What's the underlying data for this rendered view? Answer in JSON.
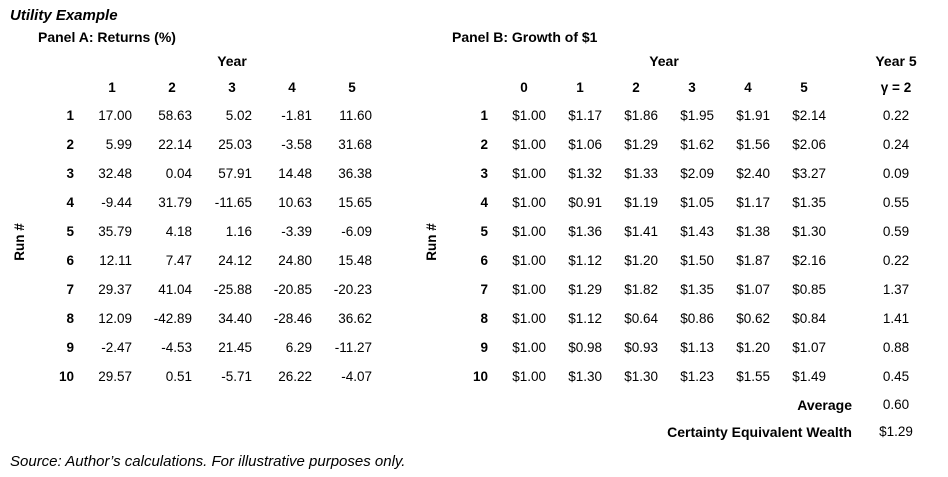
{
  "title": "Utility Example",
  "source": "Source: Author’s calculations. For illustrative purposes only.",
  "chart_data": [
    {
      "type": "table",
      "title": "Panel A: Returns (%)",
      "col_group_label": "Year",
      "row_group_label": "Run #",
      "columns": [
        "1",
        "2",
        "3",
        "4",
        "5"
      ],
      "rows": [
        {
          "run": "1",
          "values": [
            "17.00",
            "58.63",
            "5.02",
            "-1.81",
            "11.60"
          ]
        },
        {
          "run": "2",
          "values": [
            "5.99",
            "22.14",
            "25.03",
            "-3.58",
            "31.68"
          ]
        },
        {
          "run": "3",
          "values": [
            "32.48",
            "0.04",
            "57.91",
            "14.48",
            "36.38"
          ]
        },
        {
          "run": "4",
          "values": [
            "-9.44",
            "31.79",
            "-11.65",
            "10.63",
            "15.65"
          ]
        },
        {
          "run": "5",
          "values": [
            "35.79",
            "4.18",
            "1.16",
            "-3.39",
            "-6.09"
          ]
        },
        {
          "run": "6",
          "values": [
            "12.11",
            "7.47",
            "24.12",
            "24.80",
            "15.48"
          ]
        },
        {
          "run": "7",
          "values": [
            "29.37",
            "41.04",
            "-25.88",
            "-20.85",
            "-20.23"
          ]
        },
        {
          "run": "8",
          "values": [
            "12.09",
            "-42.89",
            "34.40",
            "-28.46",
            "36.62"
          ]
        },
        {
          "run": "9",
          "values": [
            "-2.47",
            "-4.53",
            "21.45",
            "6.29",
            "-11.27"
          ]
        },
        {
          "run": "10",
          "values": [
            "29.57",
            "0.51",
            "-5.71",
            "26.22",
            "-4.07"
          ]
        }
      ]
    },
    {
      "type": "table",
      "title": "Panel B: Growth of $1",
      "col_group_label": "Year",
      "row_group_label": "Run #",
      "extra_col_group_label": "Year 5",
      "extra_col_label": "γ = 2",
      "columns": [
        "0",
        "1",
        "2",
        "3",
        "4",
        "5"
      ],
      "rows": [
        {
          "run": "1",
          "values": [
            "$1.00",
            "$1.17",
            "$1.86",
            "$1.95",
            "$1.91",
            "$2.14"
          ],
          "gamma": "0.22"
        },
        {
          "run": "2",
          "values": [
            "$1.00",
            "$1.06",
            "$1.29",
            "$1.62",
            "$1.56",
            "$2.06"
          ],
          "gamma": "0.24"
        },
        {
          "run": "3",
          "values": [
            "$1.00",
            "$1.32",
            "$1.33",
            "$2.09",
            "$2.40",
            "$3.27"
          ],
          "gamma": "0.09"
        },
        {
          "run": "4",
          "values": [
            "$1.00",
            "$0.91",
            "$1.19",
            "$1.05",
            "$1.17",
            "$1.35"
          ],
          "gamma": "0.55"
        },
        {
          "run": "5",
          "values": [
            "$1.00",
            "$1.36",
            "$1.41",
            "$1.43",
            "$1.38",
            "$1.30"
          ],
          "gamma": "0.59"
        },
        {
          "run": "6",
          "values": [
            "$1.00",
            "$1.12",
            "$1.20",
            "$1.50",
            "$1.87",
            "$2.16"
          ],
          "gamma": "0.22"
        },
        {
          "run": "7",
          "values": [
            "$1.00",
            "$1.29",
            "$1.82",
            "$1.35",
            "$1.07",
            "$0.85"
          ],
          "gamma": "1.37"
        },
        {
          "run": "8",
          "values": [
            "$1.00",
            "$1.12",
            "$0.64",
            "$0.86",
            "$0.62",
            "$0.84"
          ],
          "gamma": "1.41"
        },
        {
          "run": "9",
          "values": [
            "$1.00",
            "$0.98",
            "$0.93",
            "$1.13",
            "$1.20",
            "$1.07"
          ],
          "gamma": "0.88"
        },
        {
          "run": "10",
          "values": [
            "$1.00",
            "$1.30",
            "$1.30",
            "$1.23",
            "$1.55",
            "$1.49"
          ],
          "gamma": "0.45"
        }
      ],
      "summary": [
        {
          "label": "Average",
          "value": "0.60"
        },
        {
          "label": "Certainty Equivalent Wealth",
          "value": "$1.29"
        }
      ]
    }
  ]
}
